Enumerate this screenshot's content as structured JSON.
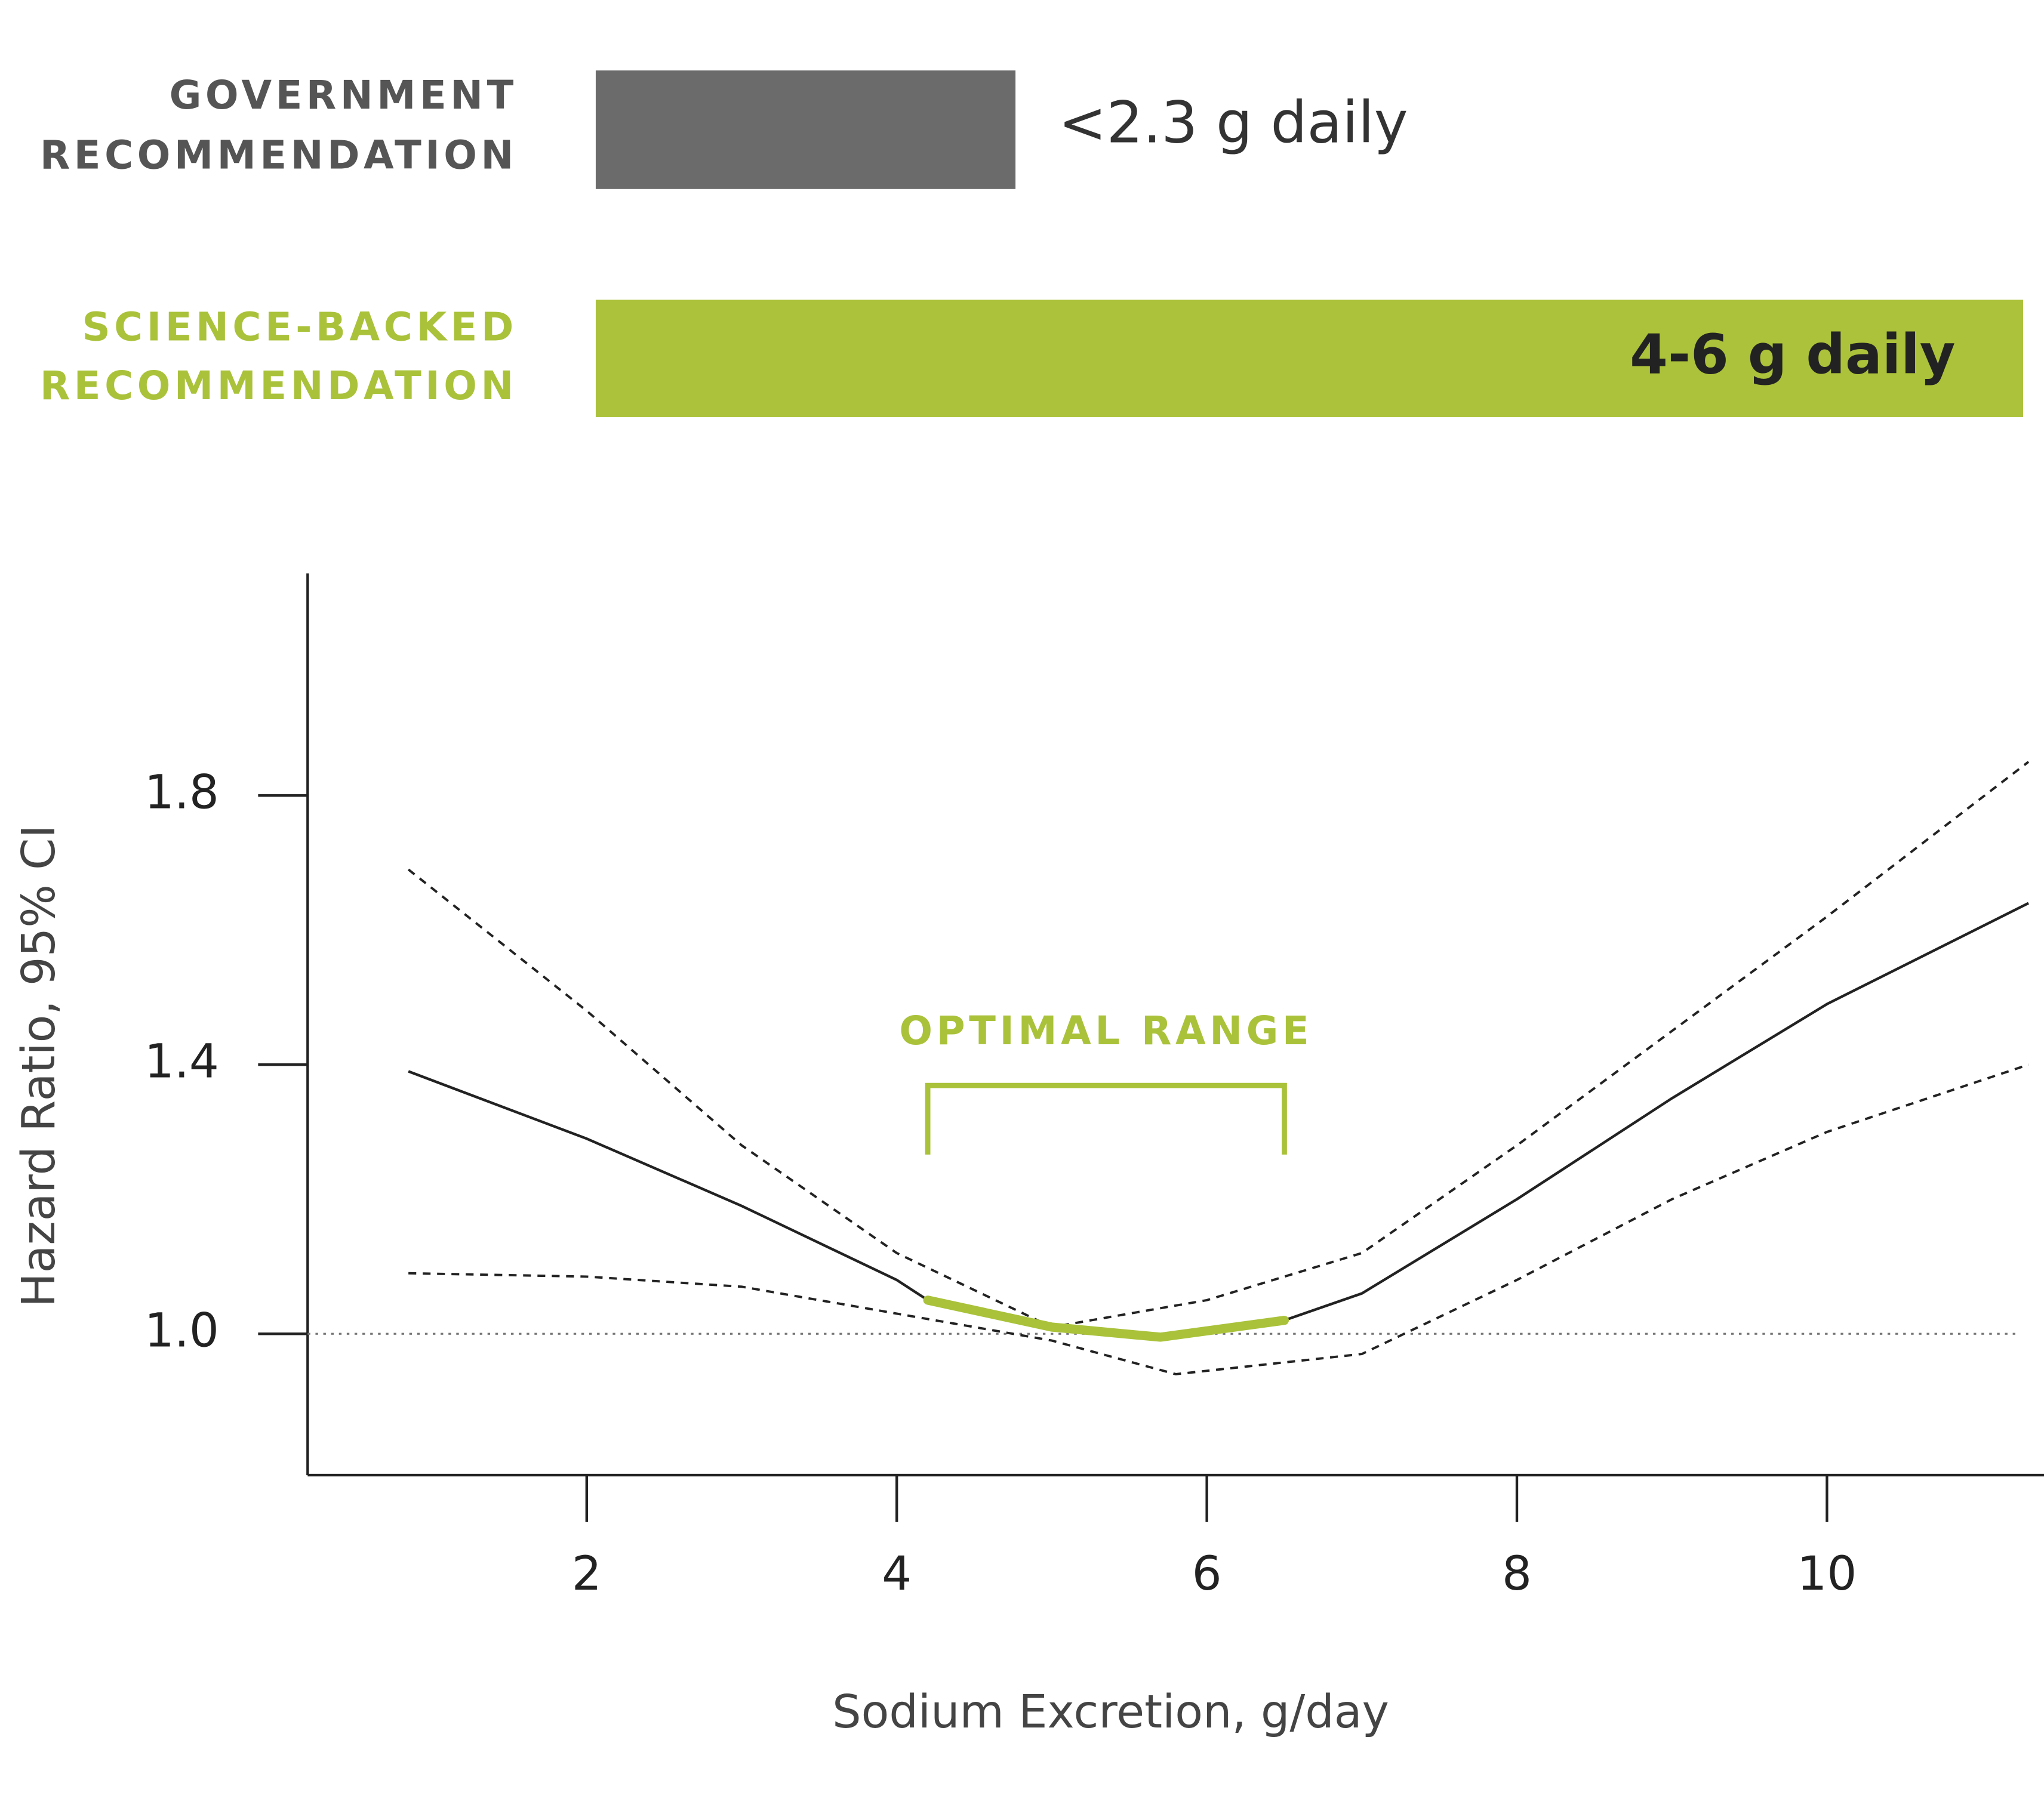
{
  "recommendations": [
    {
      "label": [
        "GOVERNMENT",
        "RECOMMENDATION"
      ],
      "value": "<2.3 g daily"
    },
    {
      "label": [
        "SCIENCE-BACKED",
        "RECOMMENDATION"
      ],
      "value": "4-6 g daily"
    }
  ],
  "chart_data": {
    "type": "line",
    "x_label": "Sodium Excretion, g/day",
    "y_label": "Hazard Ratio, 95% CI",
    "xlim": [
      0.2,
      11.4
    ],
    "ylim": [
      0.79,
      2.13
    ],
    "xticks": [
      2,
      4,
      6,
      8,
      10
    ],
    "yticks": [
      {
        "value": 1,
        "label": "1.0"
      },
      {
        "value": 1.4,
        "label": "1.4"
      },
      {
        "value": 1.8,
        "label": "1.8"
      }
    ],
    "reference_line": 1,
    "series": [
      {
        "style": "solid",
        "color": "#222222",
        "x": [
          0.85,
          2,
          3,
          4,
          4.2,
          5,
          5.7,
          6.5,
          7,
          8,
          9,
          10,
          11.3
        ],
        "values": [
          1.39,
          1.29,
          1.19,
          1.08,
          1.05,
          1.01,
          0.995,
          1.02,
          1.06,
          1.2,
          1.35,
          1.49,
          1.64
        ]
      },
      {
        "style": "dashed",
        "color": "#222222",
        "x": [
          0.85,
          2,
          3,
          4,
          5,
          6,
          7,
          8,
          9,
          10,
          11.3
        ],
        "values": [
          1.69,
          1.48,
          1.28,
          1.12,
          1.01,
          1.05,
          1.12,
          1.28,
          1.45,
          1.62,
          1.85
        ]
      },
      {
        "style": "dashed",
        "color": "#222222",
        "x": [
          0.85,
          2,
          3,
          4,
          5,
          5.8,
          7,
          8,
          9,
          10,
          11.3
        ],
        "values": [
          1.09,
          1.085,
          1.07,
          1.03,
          0.99,
          0.94,
          0.97,
          1.08,
          1.2,
          1.3,
          1.4
        ]
      }
    ],
    "highlight": {
      "label": "OPTIMAL RANGE",
      "range": [
        4.2,
        6.5
      ],
      "color": "#a9c23a"
    }
  }
}
